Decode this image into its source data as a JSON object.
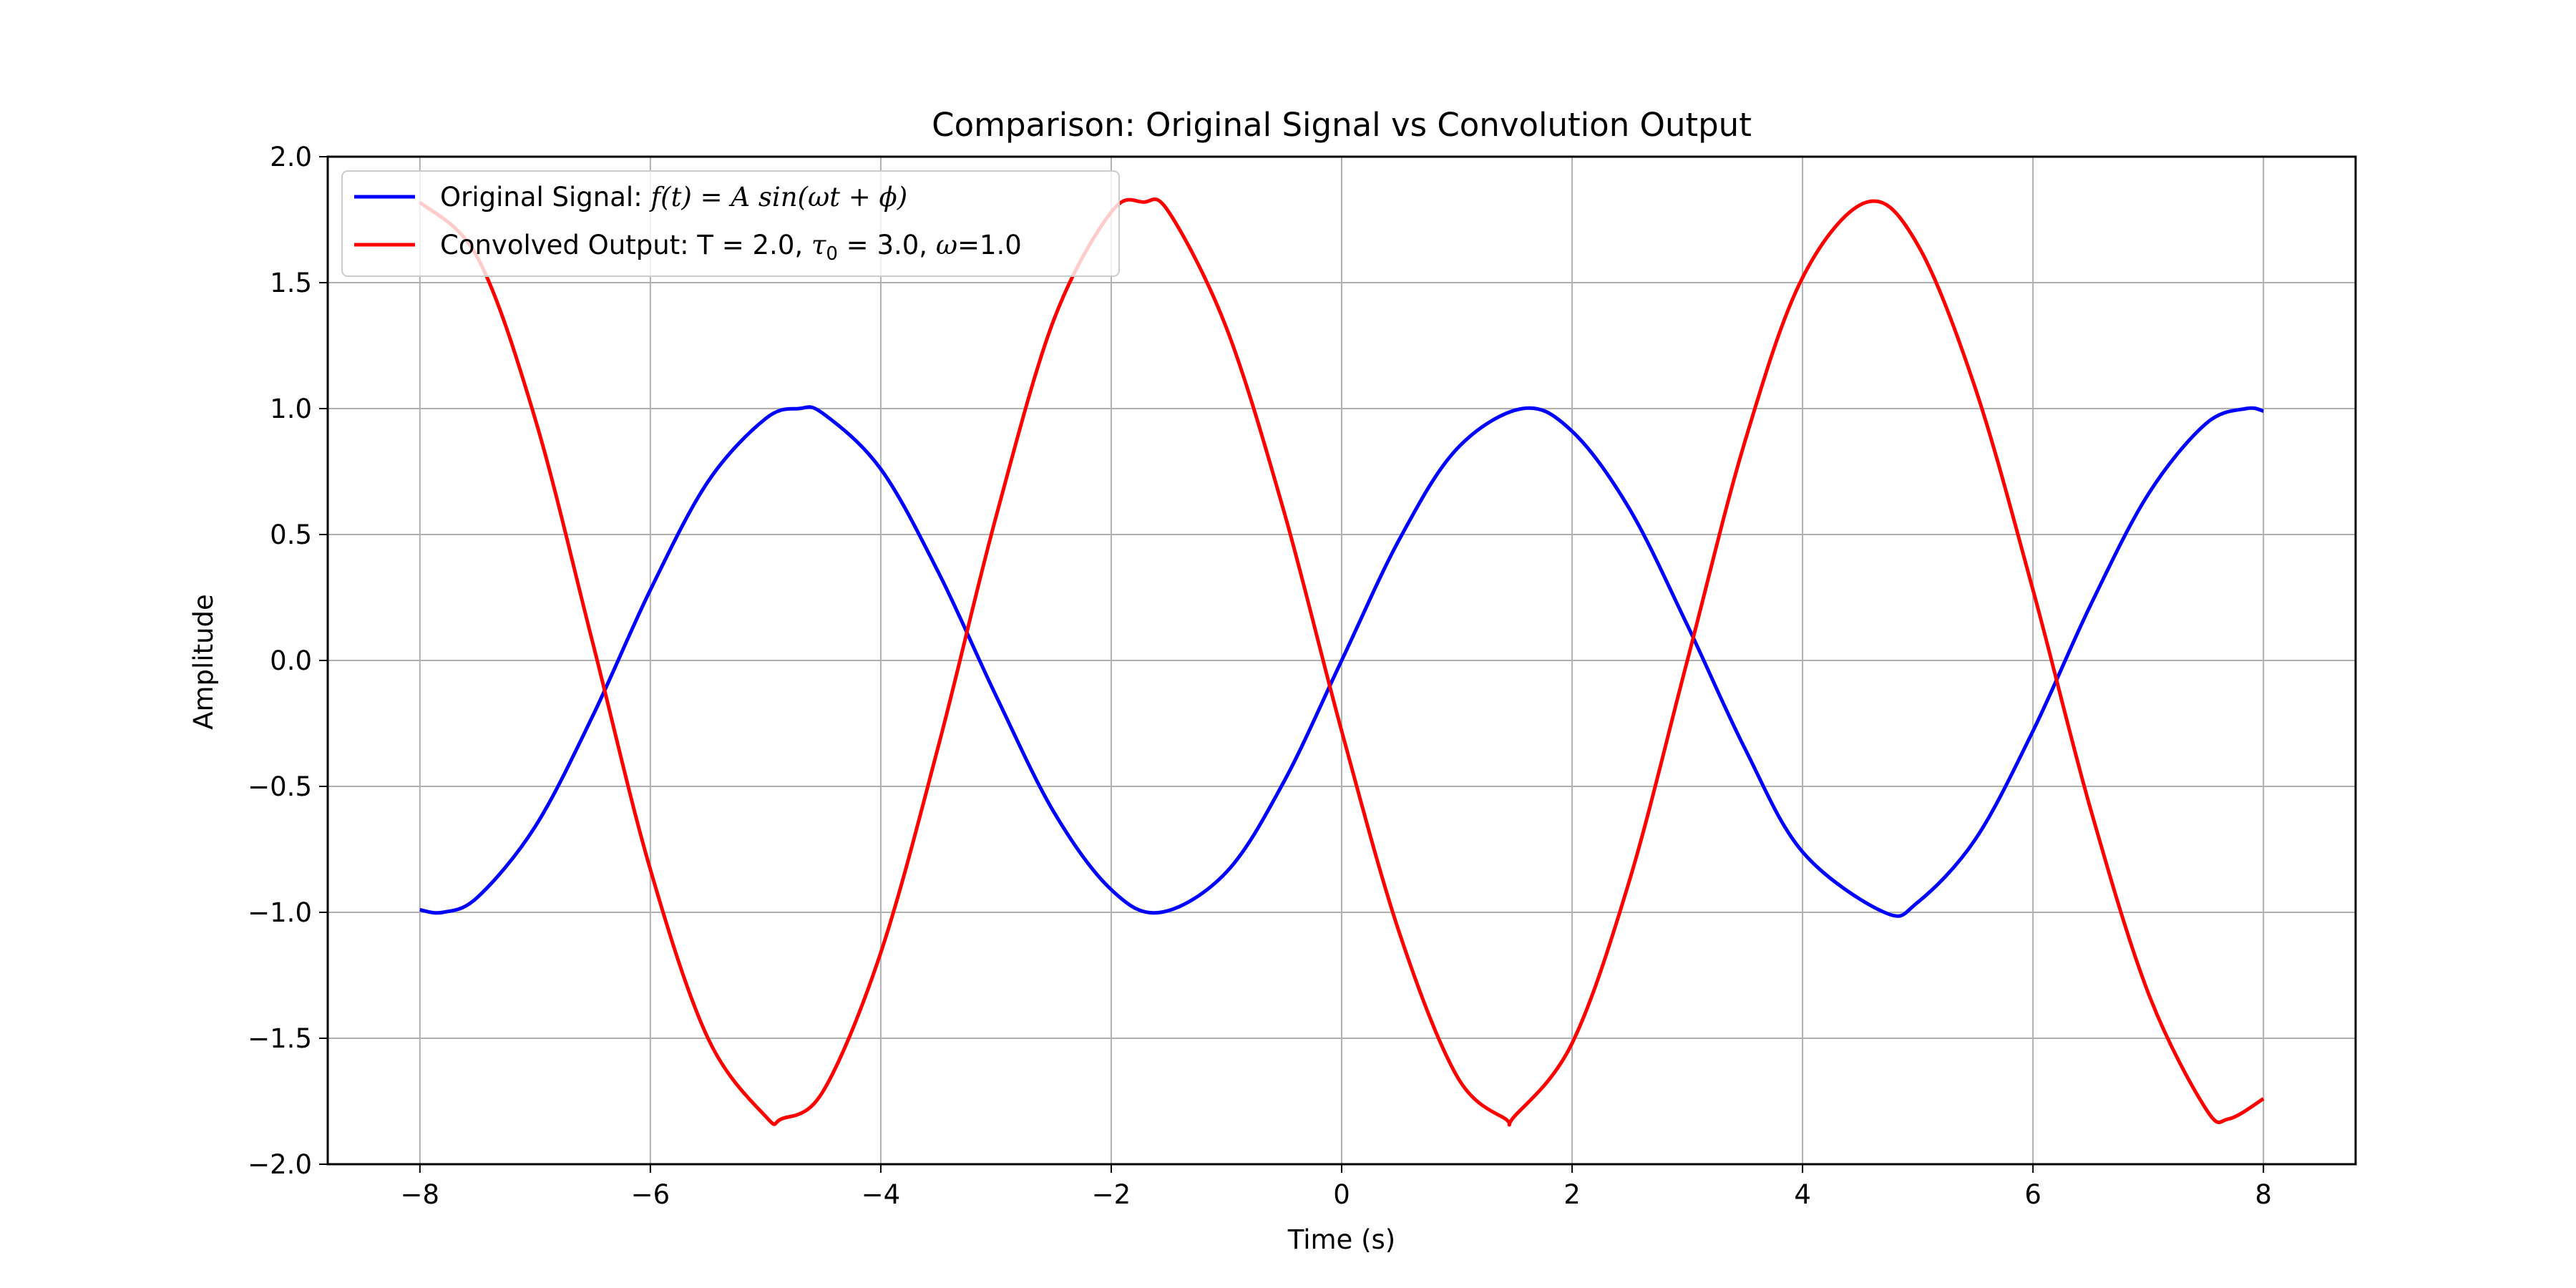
{
  "chart_data": {
    "type": "line",
    "title": "Comparison: Original Signal vs Convolution Output",
    "xlabel": "Time (s)",
    "ylabel": "Amplitude",
    "xlim": [
      -8.8,
      8.8
    ],
    "ylim": [
      -2.0,
      2.0
    ],
    "x_ticks": [
      -8,
      -6,
      -4,
      -2,
      0,
      2,
      4,
      6,
      8
    ],
    "y_ticks": [
      2.0,
      1.5,
      1.0,
      0.5,
      0.0,
      -0.5,
      -1.0,
      -1.5,
      -2.0
    ],
    "x_tick_labels": [
      "−8",
      "−6",
      "−4",
      "−2",
      "0",
      "2",
      "4",
      "6",
      "8"
    ],
    "y_tick_labels": [
      "2.0",
      "1.5",
      "1.0",
      "0.5",
      "0.0",
      "−0.5",
      "−1.0",
      "−1.5",
      "−2.0"
    ],
    "grid": true,
    "legend_position": "top-left",
    "series": [
      {
        "name": "Original Signal: f(t) = A sin(ωt + ϕ)",
        "color": "#0000ff",
        "x": [
          -8,
          -7.8,
          -7.5,
          -7,
          -6.5,
          -6,
          -5.5,
          -5,
          -4.71,
          -4.5,
          -4,
          -3.5,
          -3,
          -2.5,
          -2,
          -1.57,
          -1,
          -0.5,
          0,
          0.5,
          1,
          1.57,
          2,
          2.5,
          3,
          3.5,
          4,
          4.71,
          5,
          5.5,
          6,
          6.5,
          7,
          7.5,
          7.85,
          8
        ],
        "values": [
          -0.99,
          -1.0,
          -0.94,
          -0.66,
          -0.22,
          0.28,
          0.71,
          0.96,
          1.0,
          0.98,
          0.76,
          0.35,
          -0.14,
          -0.6,
          -0.91,
          -1.0,
          -0.84,
          -0.48,
          0.0,
          0.48,
          0.84,
          1.0,
          0.91,
          0.6,
          0.14,
          -0.35,
          -0.76,
          -1.0,
          -0.96,
          -0.71,
          -0.28,
          0.22,
          0.66,
          0.94,
          1.0,
          0.99
        ]
      },
      {
        "name": "Convolved Output: T = 2.0, τ0 = 3.0, ω=1.0",
        "color": "#ff0000",
        "x": [
          -8,
          -7.5,
          -7,
          -6.5,
          -6,
          -5.5,
          -5,
          -4.86,
          -4.5,
          -4,
          -3.5,
          -3,
          -2.5,
          -2,
          -1.72,
          -1.5,
          -1,
          -0.5,
          0,
          0.5,
          1,
          1.42,
          1.5,
          2,
          2.5,
          3,
          3.5,
          4,
          4.56,
          5,
          5.5,
          6,
          6.5,
          7,
          7.5,
          7.7,
          8
        ],
        "values": [
          1.82,
          1.6,
          0.96,
          0.07,
          -0.83,
          -1.5,
          -1.81,
          -1.82,
          -1.71,
          -1.16,
          -0.34,
          0.57,
          1.35,
          1.78,
          1.82,
          1.78,
          1.32,
          0.59,
          -0.28,
          -1.08,
          -1.65,
          -1.82,
          -1.81,
          -1.52,
          -0.87,
          0.0,
          0.87,
          1.52,
          1.82,
          1.65,
          1.08,
          0.28,
          -0.59,
          -1.32,
          -1.78,
          -1.82,
          -1.74
        ]
      }
    ]
  },
  "legend": {
    "entry1_prefix": "Original Signal: ",
    "entry1_math": "f(t) = A sin(ωt + ϕ)",
    "entry2_prefix": "Convolved Output: T = 2.0, ",
    "entry2_tau": "τ",
    "entry2_sub": "0",
    "entry2_mid": " = 3.0, ",
    "entry2_omega": "ω",
    "entry2_suffix": "=1.0"
  }
}
